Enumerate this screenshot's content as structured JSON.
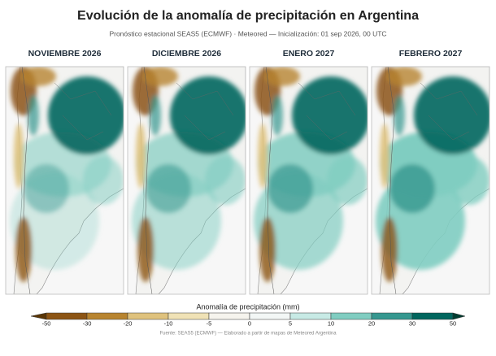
{
  "header": {
    "title": "Evolución de la anomalía de precipitación en Argentina",
    "subtitle": "Pronóstico estacional SEAS5 (ECMWF) · Meteored — Inicialización: 01 sep 2026, 00 UTC"
  },
  "panels": [
    {
      "title": "NOVIEMBRE 2026"
    },
    {
      "title": "DICIEMBRE 2026"
    },
    {
      "title": "ENERO 2027"
    },
    {
      "title": "FEBRERO 2027"
    }
  ],
  "colorbar": {
    "label": "Anomalía de precipitación (mm)",
    "ticks": [
      -50,
      -30,
      -20,
      -10,
      -5,
      0,
      5,
      10,
      20,
      30,
      50
    ],
    "colors": [
      "#5a3505",
      "#8c5414",
      "#b8842f",
      "#dfc27d",
      "#f0e2b6",
      "#f6f4ee",
      "#f3f7f6",
      "#c7eae5",
      "#80cdc1",
      "#35978f",
      "#01665e",
      "#003c30"
    ]
  },
  "footer": {
    "source": "Fuente: SEAS5 (ECMWF) — Elaborado a partir de mapas de Meteored Argentina"
  }
}
